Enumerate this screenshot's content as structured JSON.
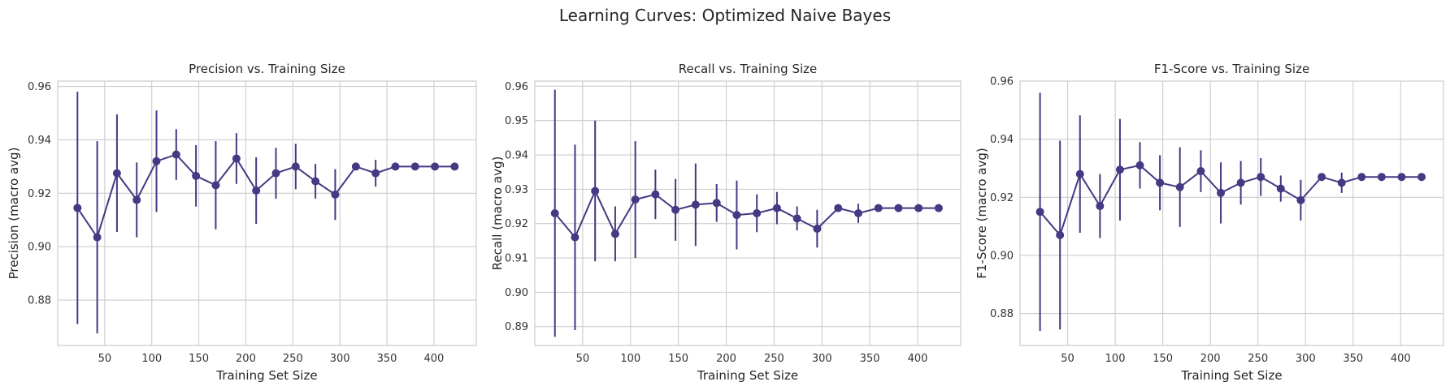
{
  "suptitle": "Learning Curves: Optimized Naive Bayes",
  "style": {
    "line_color": "#443983",
    "grid_color": "#cccccc"
  },
  "chart_data": [
    {
      "type": "line",
      "title": "Precision vs. Training Size",
      "xlabel": "Training Set Size",
      "ylabel": "Precision (macro avg)",
      "xlim": [
        0,
        445
      ],
      "ylim": [
        0.863,
        0.962
      ],
      "xticks": [
        50,
        100,
        150,
        200,
        250,
        300,
        350,
        400
      ],
      "yticks": [
        0.88,
        0.9,
        0.92,
        0.94,
        0.96
      ],
      "grid": true,
      "x": [
        21,
        42,
        63,
        84,
        105,
        126,
        147,
        168,
        190,
        211,
        232,
        253,
        274,
        295,
        317,
        338,
        359,
        380,
        401,
        422
      ],
      "y": [
        0.9145,
        0.9035,
        0.9275,
        0.9175,
        0.932,
        0.9345,
        0.9265,
        0.923,
        0.933,
        0.921,
        0.9275,
        0.93,
        0.9245,
        0.9195,
        0.93,
        0.9275,
        0.93,
        0.93,
        0.93,
        0.93
      ],
      "err": [
        0.0435,
        0.036,
        0.022,
        0.014,
        0.019,
        0.0095,
        0.0115,
        0.0165,
        0.0095,
        0.0125,
        0.0095,
        0.0085,
        0.0065,
        0.0095,
        0.0,
        0.005,
        0.0,
        0.0,
        0.0,
        0.0
      ]
    },
    {
      "type": "line",
      "title": "Recall vs. Training Size",
      "xlabel": "Training Set Size",
      "ylabel": "Recall (macro avg)",
      "xlim": [
        0,
        445
      ],
      "ylim": [
        0.8845,
        0.9615
      ],
      "xticks": [
        50,
        100,
        150,
        200,
        250,
        300,
        350,
        400
      ],
      "yticks": [
        0.89,
        0.9,
        0.91,
        0.92,
        0.93,
        0.94,
        0.95,
        0.96
      ],
      "grid": true,
      "x": [
        21,
        42,
        63,
        84,
        105,
        126,
        147,
        168,
        190,
        211,
        232,
        253,
        274,
        295,
        317,
        338,
        359,
        380,
        401,
        422
      ],
      "y": [
        0.923,
        0.916,
        0.9295,
        0.917,
        0.927,
        0.9285,
        0.924,
        0.9255,
        0.926,
        0.9225,
        0.923,
        0.9245,
        0.9215,
        0.9185,
        0.9245,
        0.923,
        0.9245,
        0.9245,
        0.9245,
        0.9245
      ],
      "err": [
        0.036,
        0.027,
        0.0205,
        0.008,
        0.017,
        0.0072,
        0.009,
        0.012,
        0.0055,
        0.01,
        0.0055,
        0.0047,
        0.0035,
        0.0055,
        0.0,
        0.0028,
        0.0,
        0.0,
        0.0,
        0.0
      ]
    },
    {
      "type": "line",
      "title": "F1-Score vs. Training Size",
      "xlabel": "Training Set Size",
      "ylabel": "F1-Score (macro avg)",
      "xlim": [
        0,
        445
      ],
      "ylim": [
        0.869,
        0.96
      ],
      "xticks": [
        50,
        100,
        150,
        200,
        250,
        300,
        350,
        400
      ],
      "yticks": [
        0.88,
        0.9,
        0.92,
        0.94,
        0.96
      ],
      "grid": true,
      "x": [
        21,
        42,
        63,
        84,
        105,
        126,
        147,
        168,
        190,
        211,
        232,
        253,
        274,
        295,
        317,
        338,
        359,
        380,
        401,
        422
      ],
      "y": [
        0.915,
        0.907,
        0.928,
        0.917,
        0.9295,
        0.931,
        0.925,
        0.9235,
        0.929,
        0.9215,
        0.925,
        0.927,
        0.923,
        0.919,
        0.927,
        0.925,
        0.927,
        0.927,
        0.927,
        0.927
      ],
      "err": [
        0.041,
        0.0325,
        0.0202,
        0.011,
        0.0175,
        0.008,
        0.0095,
        0.0137,
        0.0072,
        0.0105,
        0.0075,
        0.0065,
        0.0045,
        0.007,
        0.0,
        0.0035,
        0.0,
        0.0,
        0.0,
        0.0
      ]
    }
  ]
}
